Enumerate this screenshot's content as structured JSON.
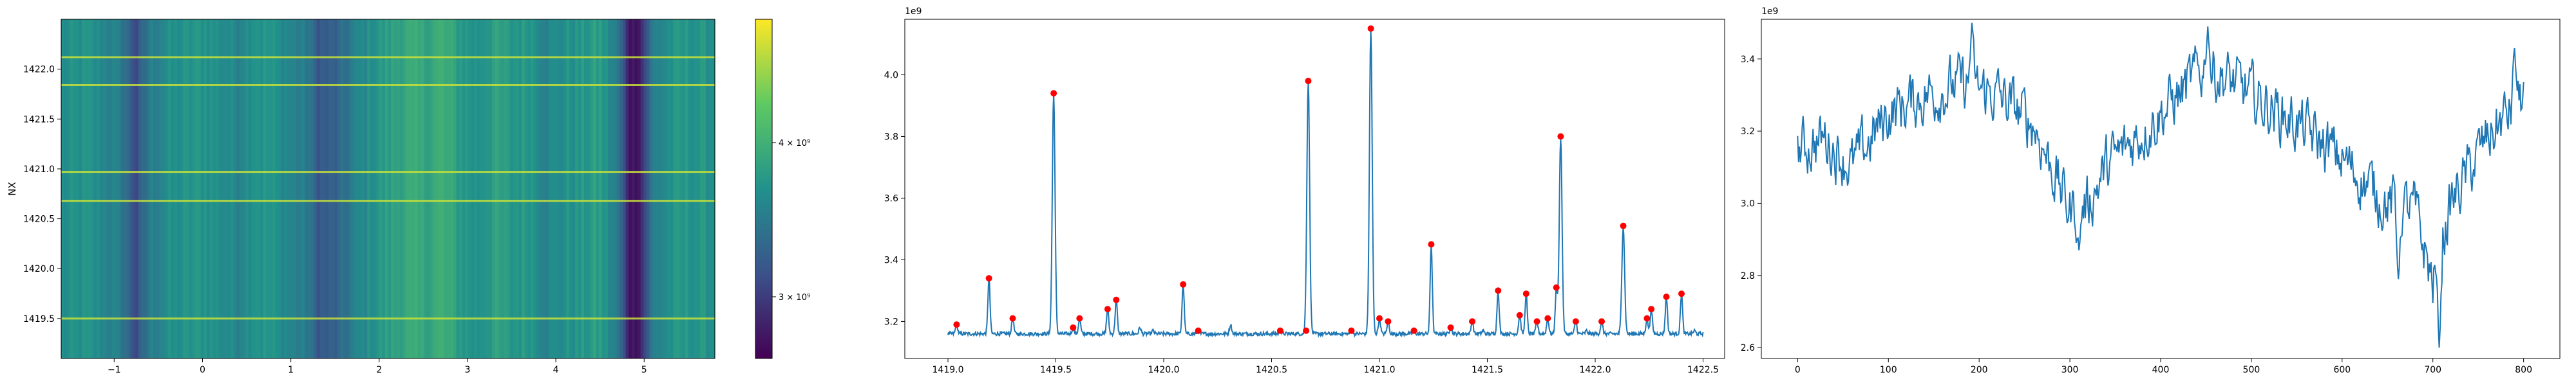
{
  "chart_data": [
    {
      "type": "heatmap",
      "ylabel": "NX",
      "xlim": [
        -1.6,
        5.8
      ],
      "ylim": [
        1419.1,
        1422.5
      ],
      "xticks": [
        -1,
        0,
        1,
        2,
        3,
        4,
        5
      ],
      "yticks": [
        1419.5,
        1420.0,
        1420.5,
        1421.0,
        1421.5,
        1422.0
      ],
      "ytick_labels": [
        "1419.5",
        "1420.0",
        "1420.5",
        "1421.0",
        "1421.5",
        "1422.0"
      ],
      "colormap": "viridis",
      "colorbar": {
        "range": [
          2600000000.0,
          4800000000.0
        ],
        "ticks": [
          {
            "value": 3000000000.0,
            "label": "3 × 10⁹"
          },
          {
            "value": 4000000000.0,
            "label": "4 × 10⁹"
          }
        ]
      },
      "column_profile": [
        {
          "x": -1.6,
          "v": 0.48
        },
        {
          "x": -1.3,
          "v": 0.5
        },
        {
          "x": -1.1,
          "v": 0.46
        },
        {
          "x": -0.9,
          "v": 0.4
        },
        {
          "x": -0.75,
          "v": 0.22
        },
        {
          "x": -0.6,
          "v": 0.42
        },
        {
          "x": -0.4,
          "v": 0.48
        },
        {
          "x": -0.2,
          "v": 0.5
        },
        {
          "x": 0.0,
          "v": 0.52
        },
        {
          "x": 0.2,
          "v": 0.49
        },
        {
          "x": 0.4,
          "v": 0.46
        },
        {
          "x": 0.6,
          "v": 0.53
        },
        {
          "x": 0.8,
          "v": 0.5
        },
        {
          "x": 1.0,
          "v": 0.45
        },
        {
          "x": 1.2,
          "v": 0.4
        },
        {
          "x": 1.3,
          "v": 0.28
        },
        {
          "x": 1.5,
          "v": 0.3
        },
        {
          "x": 1.7,
          "v": 0.42
        },
        {
          "x": 1.9,
          "v": 0.5
        },
        {
          "x": 2.1,
          "v": 0.55
        },
        {
          "x": 2.3,
          "v": 0.6
        },
        {
          "x": 2.5,
          "v": 0.58
        },
        {
          "x": 2.7,
          "v": 0.62
        },
        {
          "x": 2.9,
          "v": 0.55
        },
        {
          "x": 3.1,
          "v": 0.5
        },
        {
          "x": 3.3,
          "v": 0.56
        },
        {
          "x": 3.5,
          "v": 0.52
        },
        {
          "x": 3.7,
          "v": 0.54
        },
        {
          "x": 3.9,
          "v": 0.45
        },
        {
          "x": 4.1,
          "v": 0.5
        },
        {
          "x": 4.3,
          "v": 0.52
        },
        {
          "x": 4.5,
          "v": 0.55
        },
        {
          "x": 4.7,
          "v": 0.4
        },
        {
          "x": 4.85,
          "v": 0.05
        },
        {
          "x": 4.95,
          "v": 0.1
        },
        {
          "x": 5.1,
          "v": 0.42
        },
        {
          "x": 5.3,
          "v": 0.5
        },
        {
          "x": 5.5,
          "v": 0.52
        },
        {
          "x": 5.8,
          "v": 0.5
        }
      ],
      "bright_rows": [
        1419.5,
        1420.68,
        1420.97,
        1421.84,
        1422.12
      ]
    },
    {
      "type": "line",
      "offset_label": "1e9",
      "xlim": [
        1418.8,
        1422.6
      ],
      "ylim": [
        3.08,
        4.18
      ],
      "xticks": [
        1419.0,
        1419.5,
        1420.0,
        1420.5,
        1421.0,
        1421.5,
        1422.0,
        1422.5
      ],
      "xtick_labels": [
        "1419.0",
        "1419.5",
        "1420.0",
        "1420.5",
        "1421.0",
        "1421.5",
        "1422.0",
        "1422.5"
      ],
      "yticks": [
        3.2,
        3.4,
        3.6,
        3.8,
        4.0
      ],
      "ytick_labels": [
        "3.2",
        "3.4",
        "3.6",
        "3.8",
        "4.0"
      ],
      "line_color": "#1f77b4",
      "marker_color": "#ff0000",
      "baseline": 3.16,
      "x_range": [
        1419.0,
        1422.5
      ],
      "peaks": [
        {
          "x": 1419.04,
          "y": 3.19
        },
        {
          "x": 1419.19,
          "y": 3.34
        },
        {
          "x": 1419.3,
          "y": 3.21
        },
        {
          "x": 1419.49,
          "y": 3.94
        },
        {
          "x": 1419.58,
          "y": 3.18
        },
        {
          "x": 1419.61,
          "y": 3.21
        },
        {
          "x": 1419.74,
          "y": 3.24
        },
        {
          "x": 1419.78,
          "y": 3.27
        },
        {
          "x": 1420.09,
          "y": 3.32
        },
        {
          "x": 1420.16,
          "y": 3.17
        },
        {
          "x": 1420.54,
          "y": 3.17
        },
        {
          "x": 1420.66,
          "y": 3.17
        },
        {
          "x": 1420.67,
          "y": 3.98
        },
        {
          "x": 1420.87,
          "y": 3.17
        },
        {
          "x": 1420.96,
          "y": 4.15
        },
        {
          "x": 1421.0,
          "y": 3.21
        },
        {
          "x": 1421.04,
          "y": 3.2
        },
        {
          "x": 1421.16,
          "y": 3.17
        },
        {
          "x": 1421.24,
          "y": 3.45
        },
        {
          "x": 1421.33,
          "y": 3.18
        },
        {
          "x": 1421.43,
          "y": 3.2
        },
        {
          "x": 1421.55,
          "y": 3.3
        },
        {
          "x": 1421.65,
          "y": 3.22
        },
        {
          "x": 1421.68,
          "y": 3.29
        },
        {
          "x": 1421.73,
          "y": 3.2
        },
        {
          "x": 1421.78,
          "y": 3.21
        },
        {
          "x": 1421.82,
          "y": 3.31
        },
        {
          "x": 1421.84,
          "y": 3.8
        },
        {
          "x": 1421.91,
          "y": 3.2
        },
        {
          "x": 1422.03,
          "y": 3.2
        },
        {
          "x": 1422.13,
          "y": 3.51
        },
        {
          "x": 1422.24,
          "y": 3.21
        },
        {
          "x": 1422.26,
          "y": 3.24
        },
        {
          "x": 1422.33,
          "y": 3.28
        },
        {
          "x": 1422.4,
          "y": 3.29
        }
      ],
      "minor_bumps": [
        {
          "x": 1419.89,
          "y": 3.18
        },
        {
          "x": 1419.95,
          "y": 3.17
        },
        {
          "x": 1420.31,
          "y": 3.19
        },
        {
          "x": 1420.44,
          "y": 3.16
        },
        {
          "x": 1420.83,
          "y": 3.16
        },
        {
          "x": 1421.08,
          "y": 3.16
        },
        {
          "x": 1421.48,
          "y": 3.17
        },
        {
          "x": 1421.96,
          "y": 3.17
        },
        {
          "x": 1422.46,
          "y": 3.17
        }
      ]
    },
    {
      "type": "line",
      "offset_label": "1e9",
      "xlim": [
        -40,
        840
      ],
      "ylim": [
        2.57,
        3.51
      ],
      "xticks": [
        0,
        100,
        200,
        300,
        400,
        500,
        600,
        700,
        800
      ],
      "xtick_labels": [
        "0",
        "100",
        "200",
        "300",
        "400",
        "500",
        "600",
        "700",
        "800"
      ],
      "yticks": [
        2.6,
        2.8,
        3.0,
        3.2,
        3.4
      ],
      "ytick_labels": [
        "2.6",
        "2.8",
        "3.0",
        "3.2",
        "3.4"
      ],
      "line_color": "#1f77b4",
      "n_points": 801,
      "trend": [
        {
          "x": 0,
          "y": 3.15
        },
        {
          "x": 30,
          "y": 3.18
        },
        {
          "x": 60,
          "y": 3.1
        },
        {
          "x": 100,
          "y": 3.25
        },
        {
          "x": 140,
          "y": 3.3
        },
        {
          "x": 180,
          "y": 3.33
        },
        {
          "x": 220,
          "y": 3.3
        },
        {
          "x": 260,
          "y": 3.22
        },
        {
          "x": 300,
          "y": 2.98
        },
        {
          "x": 320,
          "y": 3.0
        },
        {
          "x": 340,
          "y": 3.1
        },
        {
          "x": 380,
          "y": 3.2
        },
        {
          "x": 420,
          "y": 3.3
        },
        {
          "x": 450,
          "y": 3.38
        },
        {
          "x": 500,
          "y": 3.3
        },
        {
          "x": 550,
          "y": 3.22
        },
        {
          "x": 600,
          "y": 3.12
        },
        {
          "x": 650,
          "y": 3.0
        },
        {
          "x": 680,
          "y": 2.98
        },
        {
          "x": 700,
          "y": 2.78
        },
        {
          "x": 720,
          "y": 3.0
        },
        {
          "x": 760,
          "y": 3.18
        },
        {
          "x": 800,
          "y": 3.3
        }
      ],
      "extremes": [
        {
          "x": 192,
          "y": 3.5
        },
        {
          "x": 452,
          "y": 3.49
        },
        {
          "x": 310,
          "y": 2.87
        },
        {
          "x": 662,
          "y": 2.79
        },
        {
          "x": 707,
          "y": 2.6
        },
        {
          "x": 790,
          "y": 3.43
        }
      ]
    }
  ]
}
